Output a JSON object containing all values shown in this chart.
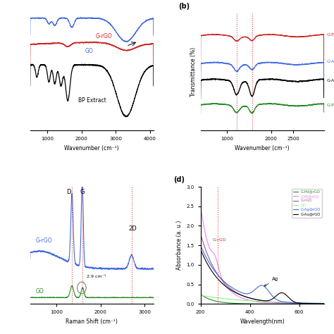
{
  "panel_a": {
    "xlabel": "Wavenumber (cm⁻¹)",
    "xlim": [
      500,
      4100
    ],
    "xticks": [
      1000,
      2000,
      3000,
      4000
    ],
    "spectra_order": [
      "G_rGO",
      "GO",
      "BP_Extract"
    ],
    "GO_color": "#4169e1",
    "GrGO_color": "#cc2222",
    "BP_color": "#000000"
  },
  "panel_b": {
    "title": "(b)",
    "xlabel": "Wavenumber (cm⁻¹)",
    "ylabel": "Transmittance (%)",
    "xlim": [
      400,
      3200
    ],
    "xticks": [
      1000,
      2000,
      2500
    ],
    "dashed_lines": [
      1220,
      1570
    ],
    "Pd_color": "#cc2222",
    "Au_color": "#4169e1",
    "Ag_color": "#000000",
    "Pt_color": "#228b22"
  },
  "panel_c": {
    "xlabel": "Raman Shift (cm⁻¹)",
    "xlim": [
      400,
      3200
    ],
    "xticks": [
      1000,
      2000,
      3000
    ],
    "dashed_lines": [
      1350,
      1580,
      2700
    ],
    "GrGO_color": "#4169e1",
    "GO_color": "#228b22"
  },
  "panel_d": {
    "title": "(d)",
    "xlabel": "Wavelength(nm)",
    "ylabel": "Absorbance (a. u.)",
    "xlim": [
      200,
      700
    ],
    "ylim": [
      0,
      3
    ],
    "xticks": [
      200,
      400,
      600
    ],
    "legend_labels": [
      "G-Pd@rGO",
      "G-Pt@rGO",
      "G-rGO",
      "GO",
      "G-Ag@rGO",
      "G-Au@rGO"
    ],
    "legend_colors": [
      "#228b22",
      "#ee82ee",
      "#8b6090",
      "#90ee90",
      "#4169e1",
      "#000000"
    ]
  }
}
